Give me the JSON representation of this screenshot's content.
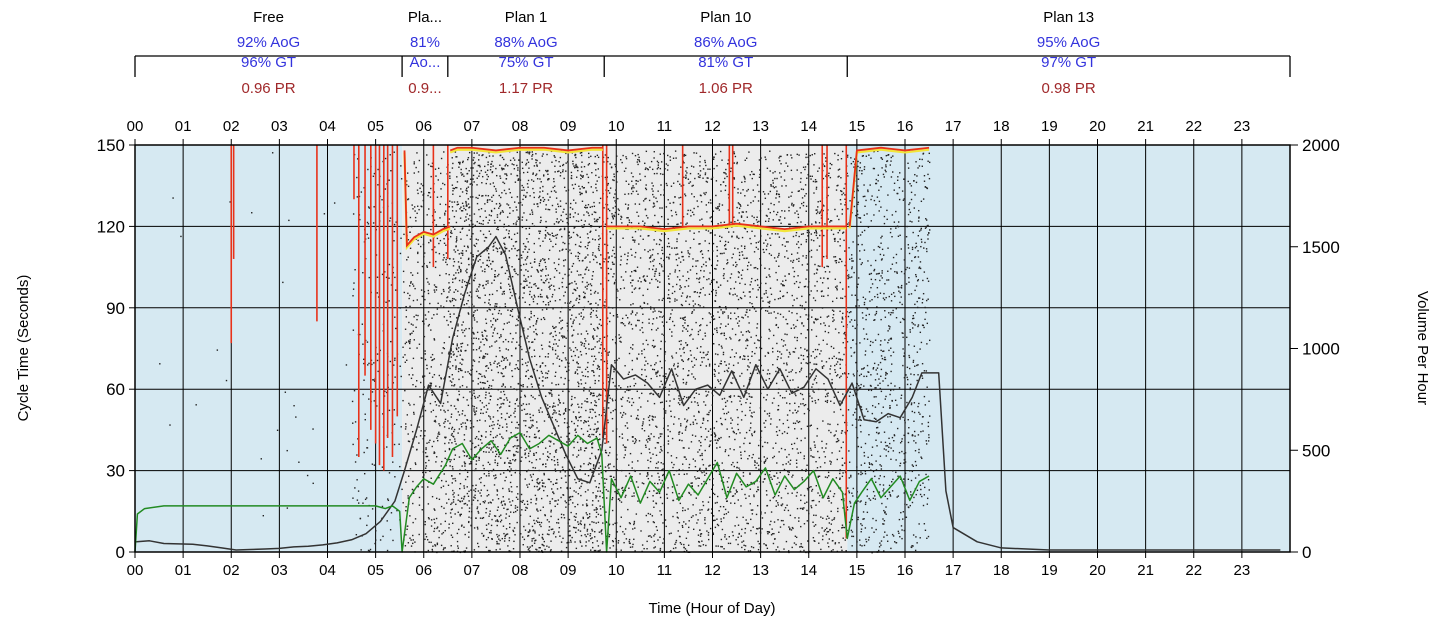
{
  "chart_data": {
    "type": "scatter",
    "xlabel": "Time (Hour of Day)",
    "ylabel": "Cycle Time (Seconds)",
    "y2label": "Volume Per Hour",
    "xlim": [
      0,
      24
    ],
    "ylim": [
      0,
      150
    ],
    "y2lim": [
      0,
      2000
    ],
    "grid": true,
    "x_ticks": [
      "00",
      "01",
      "02",
      "03",
      "04",
      "05",
      "06",
      "07",
      "08",
      "09",
      "10",
      "11",
      "12",
      "13",
      "14",
      "15",
      "16",
      "17",
      "18",
      "19",
      "20",
      "21",
      "22",
      "23"
    ],
    "y_ticks": [
      "0",
      "30",
      "60",
      "90",
      "120",
      "150"
    ],
    "y2_ticks": [
      "0",
      "500",
      "1000",
      "1500",
      "2000"
    ],
    "colors": {
      "free_plan_bg": "#d6e9f2",
      "coordinated_plan_bg": "#ececec",
      "dots": "#222222",
      "volume_line": "#333333",
      "end_of_green": "#228b22",
      "end_of_red": "#e8321a",
      "end_of_yellow": "#f2e53a",
      "aog_gt_text": "#3333dd",
      "pr_text": "#a0282a",
      "grid": "#000000"
    },
    "plans": [
      {
        "name": "Free",
        "start": 0.0,
        "end": 5.55,
        "aog": "92% AoG",
        "gt": "96% GT",
        "pr": "0.96 PR",
        "background": "free"
      },
      {
        "name": "Pla...",
        "start": 5.55,
        "end": 6.5,
        "aog": "81%",
        "gt": "Ao...",
        "pr": "0.9...",
        "background": "coordinated"
      },
      {
        "name": "Plan 1",
        "start": 6.5,
        "end": 9.75,
        "aog": "88% AoG",
        "gt": "75% GT",
        "pr": "1.17 PR",
        "background": "coordinated"
      },
      {
        "name": "Plan 10",
        "start": 9.75,
        "end": 14.8,
        "aog": "86% AoG",
        "gt": "81% GT",
        "pr": "1.06 PR",
        "background": "coordinated"
      },
      {
        "name": "Plan 13",
        "start": 14.8,
        "end": 24.0,
        "aog": "95% AoG",
        "gt": "97% GT",
        "pr": "0.98 PR",
        "background": "free"
      }
    ],
    "series": [
      {
        "role": "volume_per_hour",
        "axis": "y2",
        "x": [
          0.0,
          0.3,
          0.6,
          0.9,
          1.2,
          1.5,
          1.8,
          2.1,
          2.4,
          2.7,
          3.0,
          3.3,
          3.6,
          3.9,
          4.2,
          4.5,
          4.8,
          5.1,
          5.4,
          5.6,
          5.85,
          6.1,
          6.35,
          6.6,
          6.85,
          7.1,
          7.35,
          7.5,
          7.7,
          7.95,
          8.2,
          8.45,
          8.7,
          8.95,
          9.2,
          9.45,
          9.7,
          9.9,
          10.15,
          10.4,
          10.65,
          10.9,
          11.15,
          11.4,
          11.65,
          11.9,
          12.15,
          12.4,
          12.65,
          12.9,
          13.15,
          13.4,
          13.65,
          13.9,
          14.15,
          14.4,
          14.65,
          14.9,
          15.15,
          15.4,
          15.65,
          15.9,
          16.15,
          16.35,
          16.55,
          16.7,
          16.85,
          17.0,
          17.5,
          18.0,
          19.0,
          20.0,
          21.0,
          22.0,
          23.0,
          23.8
        ],
        "y": [
          50,
          55,
          42,
          40,
          38,
          30,
          20,
          10,
          12,
          15,
          18,
          25,
          28,
          35,
          45,
          60,
          90,
          150,
          250,
          400,
          600,
          820,
          730,
          1050,
          1270,
          1450,
          1500,
          1550,
          1460,
          1200,
          950,
          760,
          620,
          480,
          360,
          340,
          500,
          920,
          850,
          870,
          830,
          760,
          900,
          720,
          800,
          820,
          770,
          890,
          760,
          920,
          800,
          900,
          780,
          810,
          900,
          850,
          720,
          830,
          650,
          640,
          680,
          660,
          760,
          880,
          880,
          880,
          300,
          120,
          50,
          20,
          10,
          10,
          10,
          10,
          10,
          10
        ]
      },
      {
        "role": "arrivals_on_green",
        "axis": "y",
        "x": [
          0.0,
          0.05,
          0.2,
          0.6,
          1.0,
          1.5,
          2.0,
          2.5,
          3.0,
          3.5,
          4.0,
          4.5,
          5.0,
          5.2,
          5.35,
          5.5,
          5.55,
          5.7,
          5.85,
          6.0,
          6.2,
          6.45,
          6.6,
          6.8,
          7.0,
          7.2,
          7.4,
          7.6,
          7.8,
          8.0,
          8.2,
          8.4,
          8.6,
          8.8,
          9.0,
          9.2,
          9.4,
          9.6,
          9.7,
          9.8,
          9.9,
          10.1,
          10.3,
          10.5,
          10.7,
          10.9,
          11.1,
          11.3,
          11.5,
          11.7,
          11.9,
          12.1,
          12.3,
          12.5,
          12.7,
          12.9,
          13.1,
          13.3,
          13.5,
          13.7,
          13.9,
          14.1,
          14.3,
          14.5,
          14.7,
          14.8,
          14.95,
          15.1,
          15.3,
          15.5,
          15.7,
          15.9,
          16.1,
          16.3,
          16.5
        ],
        "y": [
          0,
          14,
          16,
          17,
          17,
          17,
          17,
          17,
          17,
          17,
          17,
          17,
          17,
          16,
          17,
          15,
          0,
          20,
          24,
          27,
          25,
          32,
          38,
          40,
          34,
          38,
          41,
          36,
          42,
          44,
          38,
          40,
          43,
          41,
          39,
          43,
          40,
          42,
          36,
          0,
          27,
          20,
          28,
          18,
          26,
          22,
          30,
          19,
          25,
          21,
          27,
          33,
          20,
          29,
          24,
          26,
          31,
          21,
          28,
          23,
          26,
          30,
          20,
          27,
          22,
          5,
          18,
          22,
          27,
          20,
          24,
          28,
          19,
          26,
          28
        ]
      }
    ],
    "end_of_green_curve": [
      {
        "x": [
          5.6,
          5.65,
          5.8,
          6.0,
          6.2,
          6.4,
          6.55
        ],
        "y": [
          148,
          113,
          116,
          118,
          117,
          119,
          120
        ]
      },
      {
        "x": [
          6.55,
          6.7,
          7.0,
          7.5,
          8.0,
          8.5,
          9.0,
          9.5,
          9.72
        ],
        "y": [
          148,
          149,
          149,
          148,
          149,
          149,
          148,
          149,
          149
        ]
      },
      {
        "x": [
          9.8,
          9.95,
          10.5,
          11.0,
          11.5,
          12.0,
          12.5,
          13.0,
          13.5,
          14.0,
          14.5,
          14.78
        ],
        "y": [
          120,
          120,
          120,
          119,
          120,
          120,
          121,
          120,
          119,
          120,
          120,
          120
        ]
      },
      {
        "x": [
          14.85,
          15.0,
          15.5,
          16.0,
          16.5
        ],
        "y": [
          120,
          148,
          149,
          148,
          149
        ]
      }
    ],
    "red_spikes": [
      {
        "x": 2.0,
        "y_low": 77
      },
      {
        "x": 2.05,
        "y_low": 108
      },
      {
        "x": 3.78,
        "y_low": 85
      },
      {
        "x": 4.55,
        "y_low": 130
      },
      {
        "x": 4.65,
        "y_low": 35
      },
      {
        "x": 4.78,
        "y_low": 65
      },
      {
        "x": 4.9,
        "y_low": 45
      },
      {
        "x": 5.0,
        "y_low": 40
      },
      {
        "x": 5.08,
        "y_low": 32
      },
      {
        "x": 5.17,
        "y_low": 30
      },
      {
        "x": 5.25,
        "y_low": 42
      },
      {
        "x": 5.35,
        "y_low": 35
      },
      {
        "x": 5.45,
        "y_low": 50
      },
      {
        "x": 6.2,
        "y_low": 105
      },
      {
        "x": 6.5,
        "y_low": 108
      },
      {
        "x": 9.72,
        "y_low": 42
      },
      {
        "x": 9.8,
        "y_low": 40
      },
      {
        "x": 11.38,
        "y_low": 120
      },
      {
        "x": 12.35,
        "y_low": 120
      },
      {
        "x": 12.42,
        "y_low": 120
      },
      {
        "x": 14.28,
        "y_low": 105
      },
      {
        "x": 14.38,
        "y_low": 108
      },
      {
        "x": 14.78,
        "y_low": 5
      }
    ],
    "detector_density": [
      {
        "from": 0.0,
        "to": 4.5,
        "per_hour": 6
      },
      {
        "from": 4.5,
        "to": 5.6,
        "per_hour": 200
      },
      {
        "from": 5.6,
        "to": 6.5,
        "per_hour": 550
      },
      {
        "from": 6.5,
        "to": 9.7,
        "per_hour": 900
      },
      {
        "from": 9.7,
        "to": 14.8,
        "per_hour": 650
      },
      {
        "from": 14.8,
        "to": 16.5,
        "per_hour": 550
      }
    ]
  }
}
